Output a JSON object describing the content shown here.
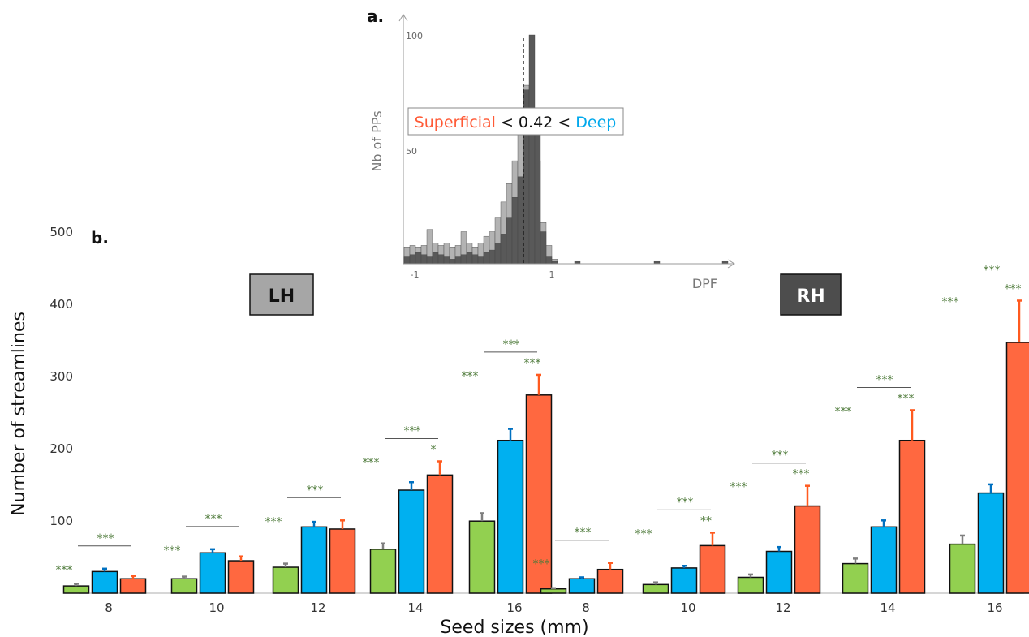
{
  "colors": {
    "green": "#92d050",
    "blue": "#00b0f0",
    "orange": "#ff6840",
    "err_gray": "#7f7f7f",
    "err_blue": "#0070c0",
    "err_orange": "#ff5a1f",
    "sig": "#4e7a3a",
    "lh_box": "#a6a6a6",
    "rh_box": "#4d4d4d",
    "hist_light": "#b3b3b3",
    "hist_dark": "#595959"
  },
  "panel_a": {
    "label": "a.",
    "xlabel": "DPF",
    "ylabel": "Nb of PPs",
    "x_ticks": [
      "-1",
      "1"
    ],
    "y_ticks": [
      "50",
      "100"
    ],
    "threshold": {
      "superficial": "Superficial",
      "mid": " < 0.42 < ",
      "deep": "Deep"
    }
  },
  "panel_b": {
    "label": "b.",
    "xlabel": "Seed sizes (mm)",
    "ylabel": "Number of streamlines",
    "y_ticks": [
      "100",
      "200",
      "300",
      "400",
      "500"
    ],
    "lh_label": "LH",
    "rh_label": "RH"
  },
  "chart_data": [
    {
      "type": "bar",
      "panel": "b",
      "hemisphere": "LH",
      "categories": [
        "8",
        "10",
        "12",
        "14",
        "16"
      ],
      "ylim": [
        0,
        500
      ],
      "series": [
        {
          "values": [
            10,
            20,
            36,
            61,
            100
          ],
          "error": [
            3,
            3,
            5,
            8,
            11
          ]
        },
        {
          "values": [
            30,
            56,
            92,
            143,
            212
          ],
          "error": [
            4,
            5,
            7,
            11,
            16
          ]
        },
        {
          "values": [
            20,
            45,
            89,
            164,
            275
          ],
          "error": [
            4,
            6,
            12,
            19,
            28
          ]
        }
      ],
      "significance": [
        {
          "top": "***",
          "left": "***",
          "right": ""
        },
        {
          "top": "***",
          "left": "***",
          "right": ""
        },
        {
          "top": "***",
          "left": "***",
          "right": ""
        },
        {
          "top": "***",
          "left": "***",
          "right": "*"
        },
        {
          "top": "***",
          "left": "***",
          "right": "***"
        }
      ]
    },
    {
      "type": "bar",
      "panel": "b",
      "hemisphere": "RH",
      "categories": [
        "8",
        "10",
        "12",
        "14",
        "16"
      ],
      "ylim": [
        0,
        500
      ],
      "series": [
        {
          "values": [
            6,
            12,
            22,
            41,
            68
          ],
          "error": [
            1,
            3,
            4,
            7,
            12
          ]
        },
        {
          "values": [
            20,
            35,
            58,
            92,
            139
          ],
          "error": [
            2,
            3,
            6,
            9,
            12
          ]
        },
        {
          "values": [
            33,
            66,
            121,
            212,
            348
          ],
          "error": [
            9,
            18,
            28,
            42,
            58
          ]
        }
      ],
      "significance": [
        {
          "top": "***",
          "left": "***",
          "right": ""
        },
        {
          "top": "***",
          "left": "***",
          "right": "**"
        },
        {
          "top": "***",
          "left": "***",
          "right": "***"
        },
        {
          "top": "***",
          "left": "***",
          "right": "***"
        },
        {
          "top": "***",
          "left": "***",
          "right": "***"
        }
      ]
    },
    {
      "type": "bar",
      "panel": "a",
      "xlabel": "DPF",
      "ylabel": "Nb of PPs",
      "threshold": 0.42,
      "series": [
        {
          "color": "light",
          "values": [
            7,
            8,
            7,
            8,
            15,
            9,
            8,
            9,
            7,
            8,
            14,
            9,
            7,
            9,
            12,
            14,
            20,
            27,
            35,
            45,
            58,
            78,
            62,
            45,
            18,
            8,
            2,
            0,
            0,
            0,
            0,
            0,
            0,
            0,
            0,
            0,
            0,
            0,
            0,
            0,
            0,
            0,
            0,
            0,
            0,
            0,
            0,
            0,
            0,
            0,
            0,
            0,
            0,
            0,
            0,
            0,
            0
          ]
        },
        {
          "color": "dark",
          "values": [
            3,
            4,
            5,
            4,
            3,
            5,
            4,
            3,
            2,
            3,
            4,
            5,
            4,
            3,
            5,
            6,
            9,
            13,
            20,
            29,
            38,
            76,
            100,
            57,
            14,
            3,
            1,
            0,
            0,
            0,
            1,
            0,
            0,
            0,
            0,
            0,
            0,
            0,
            0,
            0,
            0,
            0,
            0,
            0,
            1,
            0,
            0,
            0,
            0,
            0,
            0,
            0,
            0,
            0,
            0,
            0,
            1
          ]
        }
      ]
    }
  ]
}
